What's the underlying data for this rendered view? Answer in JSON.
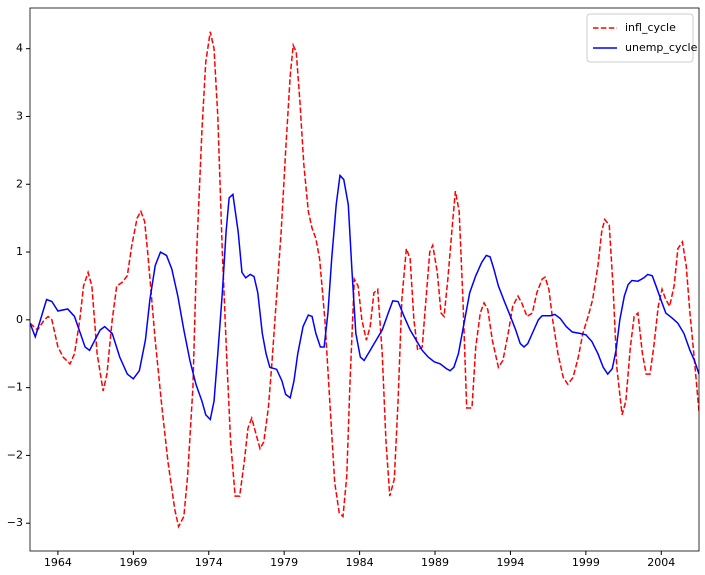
{
  "chart_data": {
    "type": "line",
    "xlim": [
      1962.15,
      2006.5
    ],
    "xticks": [
      1964,
      1969,
      1974,
      1979,
      1984,
      1989,
      1994,
      1999,
      2004
    ],
    "ylim": [
      -3.41,
      4.6
    ],
    "yticks": [
      {
        "value": -3,
        "label": "−3"
      },
      {
        "value": -2,
        "label": "−2"
      },
      {
        "value": -1,
        "label": "−1"
      },
      0,
      1,
      2,
      3,
      4
    ],
    "legend": "upper right",
    "series": [
      {
        "name": "infl_cycle",
        "color": "#ff0000",
        "linestyle": "dashed",
        "x": [
          1962.15,
          1962.65,
          1963.1,
          1963.35,
          1963.6,
          1964.0,
          1964.35,
          1964.8,
          1965.1,
          1965.45,
          1965.7,
          1966.0,
          1966.25,
          1966.6,
          1967.0,
          1967.25,
          1967.6,
          1967.9,
          1968.25,
          1968.6,
          1968.9,
          1969.25,
          1969.5,
          1969.75,
          1969.95,
          1970.45,
          1970.9,
          1971.3,
          1971.75,
          1972.0,
          1972.35,
          1972.6,
          1972.95,
          1973.2,
          1973.55,
          1973.8,
          1974.1,
          1974.35,
          1974.6,
          1974.9,
          1975.2,
          1975.45,
          1975.75,
          1976.05,
          1976.35,
          1976.6,
          1976.85,
          1977.15,
          1977.4,
          1977.65,
          1977.95,
          1978.2,
          1978.45,
          1978.8,
          1979.1,
          1979.4,
          1979.6,
          1979.8,
          1980.05,
          1980.3,
          1980.6,
          1980.85,
          1981.1,
          1981.35,
          1981.7,
          1982.05,
          1982.35,
          1982.65,
          1982.9,
          1983.15,
          1983.35,
          1983.65,
          1983.9,
          1984.15,
          1984.45,
          1984.7,
          1984.95,
          1985.2,
          1985.5,
          1985.75,
          1986.0,
          1986.3,
          1986.55,
          1986.8,
          1987.1,
          1987.35,
          1987.6,
          1987.85,
          1988.15,
          1988.4,
          1988.65,
          1988.85,
          1989.15,
          1989.4,
          1989.6,
          1989.85,
          1990.15,
          1990.35,
          1990.6,
          1990.85,
          1991.1,
          1991.45,
          1991.7,
          1992.0,
          1992.25,
          1992.5,
          1992.8,
          1993.2,
          1993.5,
          1993.85,
          1994.15,
          1994.5,
          1994.75,
          1995.1,
          1995.45,
          1995.75,
          1996.1,
          1996.3,
          1996.55,
          1996.8,
          1997.15,
          1997.5,
          1997.8,
          1998.15,
          1998.5,
          1998.8,
          1999.15,
          1999.45,
          1999.8,
          2000.05,
          2000.25,
          2000.55,
          2000.8,
          2001.05,
          2001.4,
          2001.65,
          2001.95,
          2002.2,
          2002.45,
          2002.75,
          2003.0,
          2003.25,
          2003.5,
          2003.8,
          2004.05,
          2004.3,
          2004.55,
          2004.85,
          2005.1,
          2005.4,
          2005.65,
          2005.9,
          2006.2,
          2006.5
        ],
        "values": [
          -0.05,
          -0.15,
          0.0,
          0.05,
          0.0,
          -0.4,
          -0.55,
          -0.65,
          -0.5,
          0.0,
          0.5,
          0.7,
          0.5,
          -0.5,
          -1.05,
          -0.8,
          0.0,
          0.5,
          0.55,
          0.65,
          1.1,
          1.5,
          1.6,
          1.45,
          1.0,
          -0.3,
          -1.3,
          -2.1,
          -2.8,
          -3.05,
          -2.9,
          -2.3,
          -1.0,
          1.0,
          2.8,
          3.8,
          4.25,
          4.0,
          3.0,
          1.0,
          -0.6,
          -1.8,
          -2.6,
          -2.6,
          -2.1,
          -1.6,
          -1.45,
          -1.7,
          -1.9,
          -1.8,
          -1.3,
          -0.6,
          0.2,
          1.3,
          2.5,
          3.6,
          4.05,
          3.95,
          3.2,
          2.3,
          1.6,
          1.35,
          1.2,
          0.9,
          0.0,
          -1.3,
          -2.4,
          -2.85,
          -2.9,
          -2.3,
          -1.0,
          0.6,
          0.5,
          0.0,
          -0.3,
          -0.1,
          0.4,
          0.45,
          -0.5,
          -1.8,
          -2.6,
          -2.35,
          -1.2,
          0.3,
          1.05,
          0.9,
          0.0,
          -0.45,
          -0.4,
          0.3,
          1.0,
          1.1,
          0.7,
          0.1,
          0.05,
          0.6,
          1.4,
          1.9,
          1.6,
          0.3,
          -1.3,
          -1.3,
          -0.4,
          0.1,
          0.25,
          0.15,
          -0.3,
          -0.7,
          -0.6,
          -0.2,
          0.2,
          0.35,
          0.25,
          0.05,
          0.1,
          0.4,
          0.6,
          0.63,
          0.45,
          0.0,
          -0.5,
          -0.85,
          -0.95,
          -0.85,
          -0.55,
          -0.2,
          0.05,
          0.3,
          0.8,
          1.3,
          1.48,
          1.4,
          0.5,
          -0.7,
          -1.4,
          -1.2,
          -0.4,
          0.05,
          0.1,
          -0.5,
          -0.8,
          -0.8,
          -0.4,
          0.2,
          0.45,
          0.3,
          0.2,
          0.5,
          1.05,
          1.15,
          0.8,
          0.1,
          -0.6,
          -1.35
        ]
      },
      {
        "name": "unemp_cycle",
        "color": "#0000ff",
        "linestyle": "solid",
        "x": [
          1962.15,
          1962.5,
          1963.25,
          1963.6,
          1964.0,
          1964.65,
          1965.1,
          1965.8,
          1966.1,
          1966.8,
          1967.1,
          1967.6,
          1968.1,
          1968.6,
          1969.0,
          1969.4,
          1969.8,
          1970.1,
          1970.45,
          1970.8,
          1971.2,
          1971.55,
          1971.95,
          1972.35,
          1972.75,
          1973.15,
          1973.55,
          1973.8,
          1974.1,
          1974.35,
          1974.6,
          1974.9,
          1975.15,
          1975.35,
          1975.6,
          1975.95,
          1976.2,
          1976.45,
          1976.75,
          1977.0,
          1977.25,
          1977.55,
          1977.8,
          1978.05,
          1978.5,
          1978.85,
          1979.1,
          1979.4,
          1979.65,
          1979.9,
          1980.25,
          1980.6,
          1980.85,
          1981.1,
          1981.4,
          1981.65,
          1981.9,
          1982.15,
          1982.45,
          1982.7,
          1982.95,
          1983.25,
          1983.5,
          1983.75,
          1984.05,
          1984.3,
          1984.7,
          1985.1,
          1985.5,
          1985.9,
          1986.2,
          1986.55,
          1986.95,
          1987.35,
          1987.75,
          1988.15,
          1988.55,
          1988.95,
          1989.35,
          1989.75,
          1990.0,
          1990.25,
          1990.55,
          1990.8,
          1991.05,
          1991.3,
          1991.7,
          1992.1,
          1992.4,
          1992.65,
          1992.9,
          1993.2,
          1993.6,
          1994.0,
          1994.35,
          1994.65,
          1994.9,
          1995.15,
          1995.55,
          1995.85,
          1996.1,
          1996.65,
          1996.95,
          1997.3,
          1997.7,
          1998.1,
          1998.6,
          1999.0,
          1999.4,
          1999.8,
          2000.15,
          2000.45,
          2000.75,
          2001.0,
          2001.25,
          2001.55,
          2001.8,
          2002.05,
          2002.45,
          2002.85,
          2003.1,
          2003.4,
          2003.65,
          2004.05,
          2004.3,
          2004.7,
          2005.1,
          2005.5,
          2005.9,
          2006.2,
          2006.5
        ],
        "values": [
          -0.05,
          -0.25,
          0.3,
          0.27,
          0.13,
          0.16,
          0.05,
          -0.4,
          -0.45,
          -0.15,
          -0.1,
          -0.2,
          -0.55,
          -0.8,
          -0.87,
          -0.75,
          -0.3,
          0.3,
          0.8,
          1.0,
          0.95,
          0.75,
          0.35,
          -0.15,
          -0.6,
          -0.95,
          -1.2,
          -1.4,
          -1.47,
          -1.2,
          -0.5,
          0.4,
          1.3,
          1.8,
          1.85,
          1.3,
          0.7,
          0.62,
          0.67,
          0.64,
          0.4,
          -0.2,
          -0.5,
          -0.7,
          -0.73,
          -0.9,
          -1.1,
          -1.15,
          -0.9,
          -0.5,
          -0.1,
          0.07,
          0.05,
          -0.2,
          -0.4,
          -0.4,
          0.1,
          0.9,
          1.7,
          2.13,
          2.07,
          1.7,
          0.7,
          -0.2,
          -0.55,
          -0.6,
          -0.45,
          -0.3,
          -0.15,
          0.1,
          0.28,
          0.27,
          0.05,
          -0.15,
          -0.3,
          -0.45,
          -0.55,
          -0.62,
          -0.65,
          -0.72,
          -0.75,
          -0.7,
          -0.5,
          -0.2,
          0.1,
          0.4,
          0.65,
          0.85,
          0.95,
          0.93,
          0.75,
          0.5,
          0.27,
          0.05,
          -0.15,
          -0.35,
          -0.4,
          -0.35,
          -0.15,
          0.0,
          0.06,
          0.06,
          0.08,
          0.02,
          -0.1,
          -0.18,
          -0.2,
          -0.22,
          -0.32,
          -0.5,
          -0.7,
          -0.8,
          -0.72,
          -0.45,
          0.0,
          0.35,
          0.52,
          0.58,
          0.57,
          0.62,
          0.67,
          0.65,
          0.5,
          0.25,
          0.1,
          0.03,
          -0.05,
          -0.2,
          -0.45,
          -0.6,
          -0.8
        ]
      }
    ]
  }
}
